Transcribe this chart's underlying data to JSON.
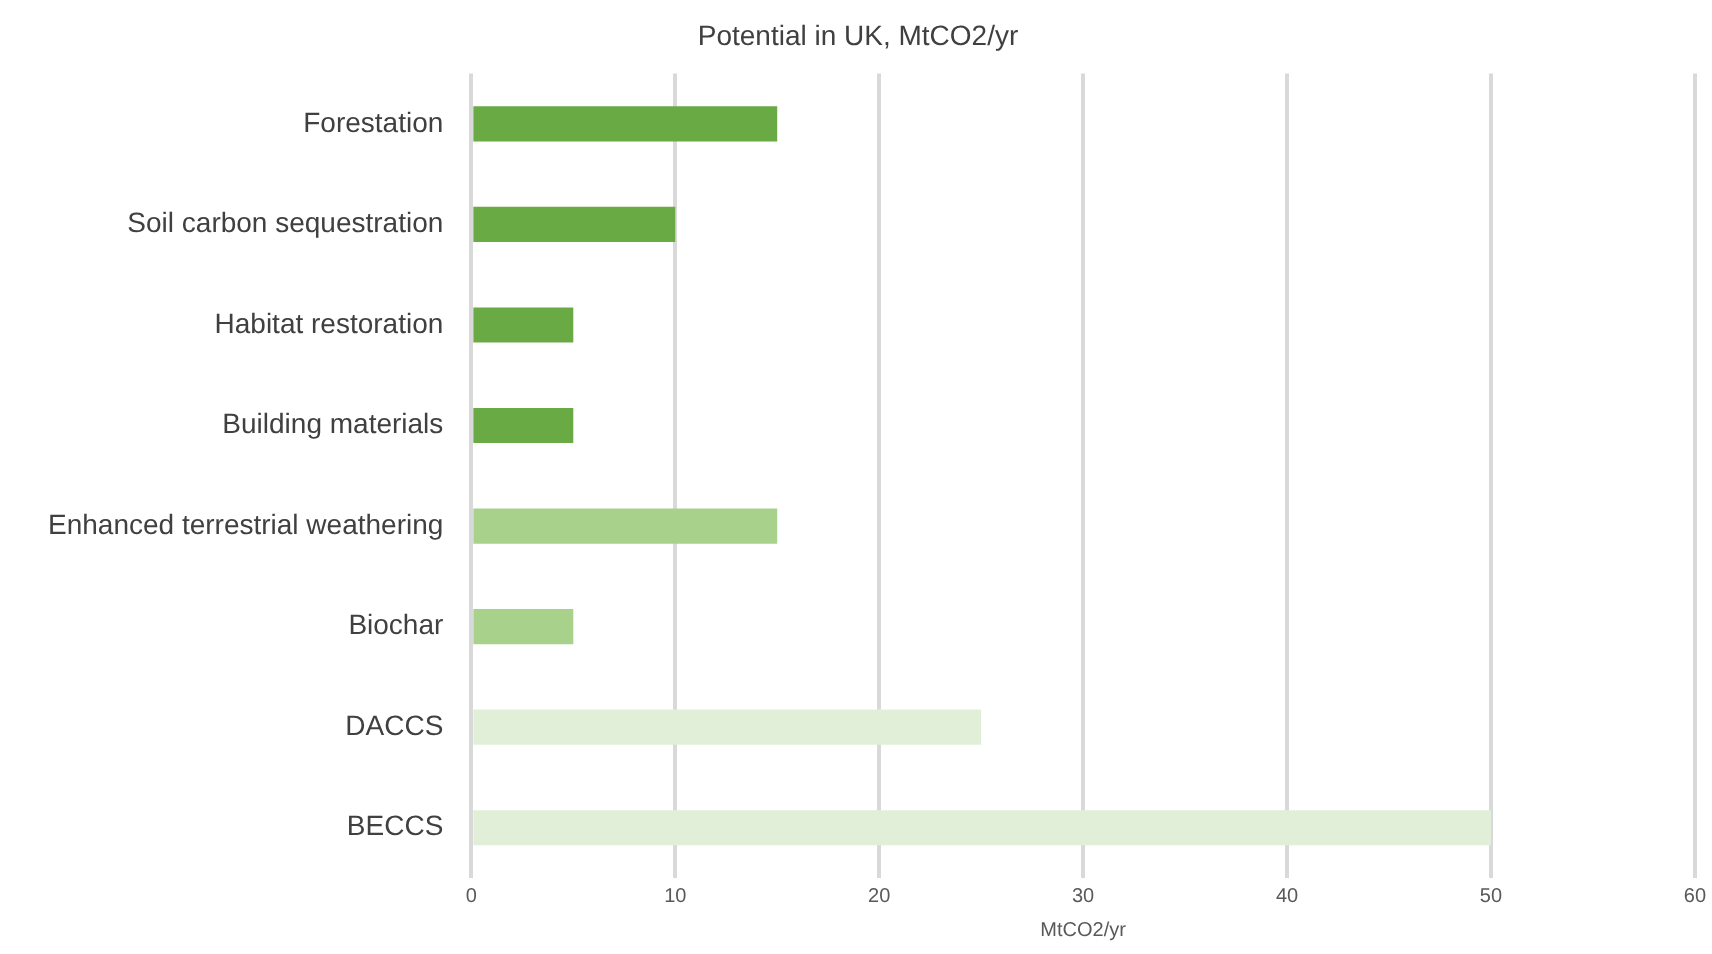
{
  "chart_data": {
    "type": "bar",
    "orientation": "horizontal",
    "title": "Potential in UK, MtCO2/yr",
    "xlabel": "MtCO2/yr",
    "categories": [
      "Forestation",
      "Soil carbon sequestration",
      "Habitat restoration",
      "Building materials",
      "Enhanced terrestrial weathering",
      "Biochar",
      "DACCS",
      "BECCS"
    ],
    "values": [
      15,
      10,
      5,
      5,
      15,
      5,
      25,
      50
    ],
    "colors": [
      "#6aaa45",
      "#6aaa45",
      "#6aaa45",
      "#6aaa45",
      "#a8d18c",
      "#a8d18c",
      "#e1efd8",
      "#e1efd8"
    ],
    "xlim": [
      0,
      60
    ],
    "xticks": [
      0,
      10,
      20,
      30,
      40,
      50,
      60
    ],
    "grid": "x",
    "legend": false
  }
}
